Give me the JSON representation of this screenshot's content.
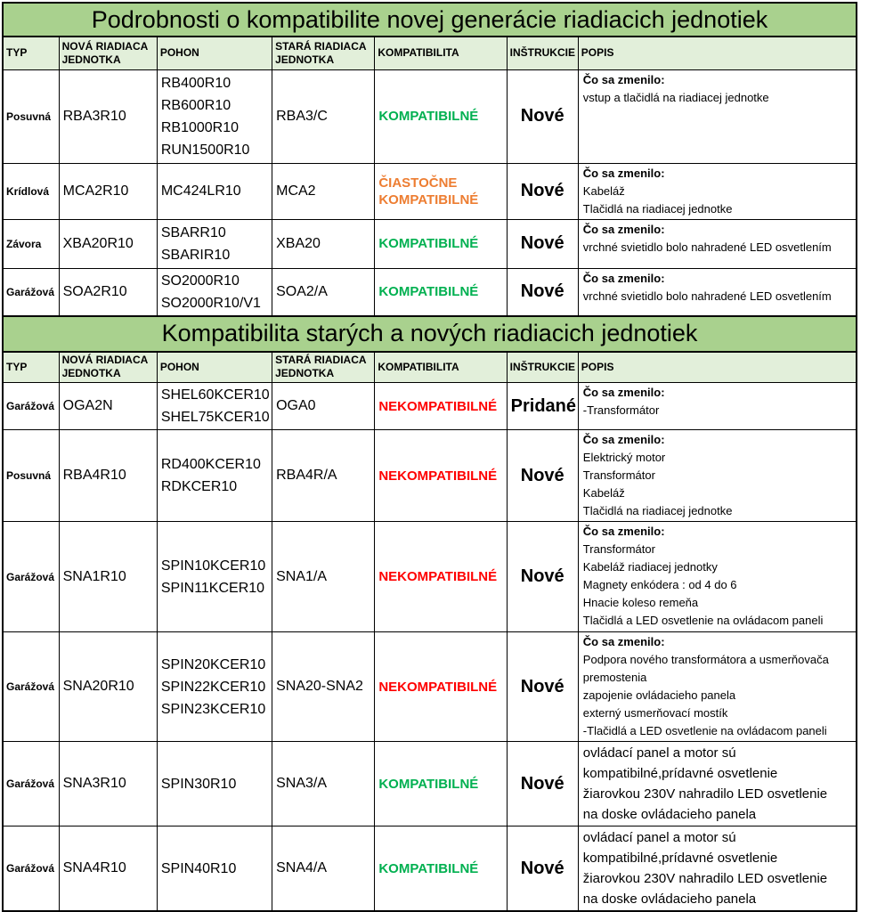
{
  "colors": {
    "title_bg": "#a9d18e",
    "header_bg": "#e2efda",
    "compatible": "#00b050",
    "partial": "#ed7d31",
    "incompatible": "#ff0000"
  },
  "headers": [
    "TYP",
    "NOVÁ RIADIACA JEDNOTKA",
    "POHON",
    "STARÁ RIADIACA JEDNOTKA",
    "KOMPATIBILITA",
    "INŠTRUKCIE",
    "POPIS"
  ],
  "tables": [
    {
      "title": "Podrobnosti o kompatibilite novej generácie riadiacich jednotiek",
      "rows": [
        {
          "typ": "Posuvná",
          "nova": "RBA3R10",
          "pohon": [
            "RB400R10",
            "RB600R10",
            "RB1000R10",
            "RUN1500R10"
          ],
          "stara": "RBA3/C",
          "kompatibilita": "KOMPATIBILNÉ",
          "status": "compatible",
          "instrukcie": "Nové",
          "popis": {
            "heading": "Čo sa zmenilo:",
            "lines": [
              "vstup a tlačidlá na riadiacej jednotke"
            ],
            "large": false
          }
        },
        {
          "typ": "Krídlová",
          "nova": "MCA2R10",
          "pohon": [
            "MC424LR10"
          ],
          "stara": "MCA2",
          "kompatibilita": "ČIASTOČNE KOMPATIBILNÉ",
          "status": "partial",
          "instrukcie": "Nové",
          "popis": {
            "heading": "Čo sa zmenilo:",
            "lines": [
              "Kabeláž",
              "Tlačidlá na riadiacej jednotke"
            ],
            "large": false
          }
        },
        {
          "typ": "Závora",
          "nova": "XBA20R10",
          "pohon": [
            "SBARR10",
            "SBARIR10"
          ],
          "stara": "XBA20",
          "kompatibilita": "KOMPATIBILNÉ",
          "status": "compatible",
          "instrukcie": "Nové",
          "popis": {
            "heading": "Čo sa zmenilo:",
            "lines": [
              "vrchné svietidlo bolo nahradené LED osvetlením"
            ],
            "large": false
          }
        },
        {
          "typ": "Garážová",
          "nova": "SOA2R10",
          "pohon": [
            "SO2000R10",
            "SO2000R10/V1"
          ],
          "stara": "SOA2/A",
          "kompatibilita": "KOMPATIBILNÉ",
          "status": "compatible",
          "instrukcie": "Nové",
          "popis": {
            "heading": "Čo sa zmenilo:",
            "lines": [
              "vrchné svietidlo bolo nahradené LED osvetlením"
            ],
            "large": false
          }
        }
      ]
    },
    {
      "title": "Kompatibilita starých a nových riadiacich jednotiek",
      "rows": [
        {
          "typ": "Garážová",
          "nova": "OGA2N",
          "pohon": [
            "SHEL60KCER10",
            "SHEL75KCER10"
          ],
          "stara": "OGA0",
          "kompatibilita": "NEKOMPATIBILNÉ",
          "status": "incompatible",
          "instrukcie": "Pridané",
          "popis": {
            "heading": "Čo sa zmenilo:",
            "lines": [
              "-Transformátor"
            ],
            "large": false
          }
        },
        {
          "typ": "Posuvná",
          "nova": "RBA4R10",
          "pohon": [
            "RD400KCER10",
            "RDKCER10"
          ],
          "stara": "RBA4R/A",
          "kompatibilita": "NEKOMPATIBILNÉ",
          "status": "incompatible",
          "instrukcie": "Nové",
          "popis": {
            "heading": "Čo sa zmenilo:",
            "lines": [
              "Elektrický motor",
              "Transformátor",
              "Kabeláž",
              "Tlačidlá na riadiacej jednotke"
            ],
            "large": false
          }
        },
        {
          "typ": "Garážová",
          "nova": "SNA1R10",
          "pohon": [
            "SPIN10KCER10",
            "SPIN11KCER10"
          ],
          "stara": "SNA1/A",
          "kompatibilita": "NEKOMPATIBILNÉ",
          "status": "incompatible",
          "instrukcie": "Nové",
          "popis": {
            "heading": "Čo sa zmenilo:",
            "lines": [
              "Transformátor",
              "Kabeláž riadiacej jednotky",
              "Magnety enkódera : od 4 do 6",
              "Hnacie koleso remeňa",
              "Tlačidlá a LED osvetlenie na ovládacom paneli"
            ],
            "large": false
          }
        },
        {
          "typ": "Garážová",
          "nova": "SNA20R10",
          "pohon": [
            "SPIN20KCER10",
            "SPIN22KCER10",
            "SPIN23KCER10"
          ],
          "stara": "SNA20-SNA2",
          "kompatibilita": "NEKOMPATIBILNÉ",
          "status": "incompatible",
          "instrukcie": "Nové",
          "popis": {
            "heading": "Čo sa zmenilo:",
            "lines": [
              "Podpora nového transformátora a usmerňovača",
              "premostenia",
              "zapojenie ovládacieho panela",
              "externý usmerňovací mostík",
              "-Tlačidlá a LED osvetlenie na ovládacom paneli"
            ],
            "large": false
          }
        },
        {
          "typ": "Garážová",
          "nova": "SNA3R10",
          "pohon": [
            "SPIN30R10"
          ],
          "stara": "SNA3/A",
          "kompatibilita": "KOMPATIBILNÉ",
          "status": "compatible",
          "instrukcie": "Nové",
          "popis": {
            "heading": "",
            "lines": [
              "ovládací panel a motor sú",
              "kompatibilné,prídavné osvetlenie",
              "žiarovkou 230V nahradilo LED osvetlenie",
              "na doske ovládacieho panela"
            ],
            "large": true
          }
        },
        {
          "typ": "Garážová",
          "nova": "SNA4R10",
          "pohon": [
            "SPIN40R10"
          ],
          "stara": "SNA4/A",
          "kompatibilita": "KOMPATIBILNÉ",
          "status": "compatible",
          "instrukcie": "Nové",
          "popis": {
            "heading": "",
            "lines": [
              "ovládací panel a motor sú",
              "kompatibilné,prídavné osvetlenie",
              "žiarovkou 230V nahradilo LED osvetlenie",
              "na doske ovládacieho panela"
            ],
            "large": true
          }
        }
      ]
    }
  ]
}
